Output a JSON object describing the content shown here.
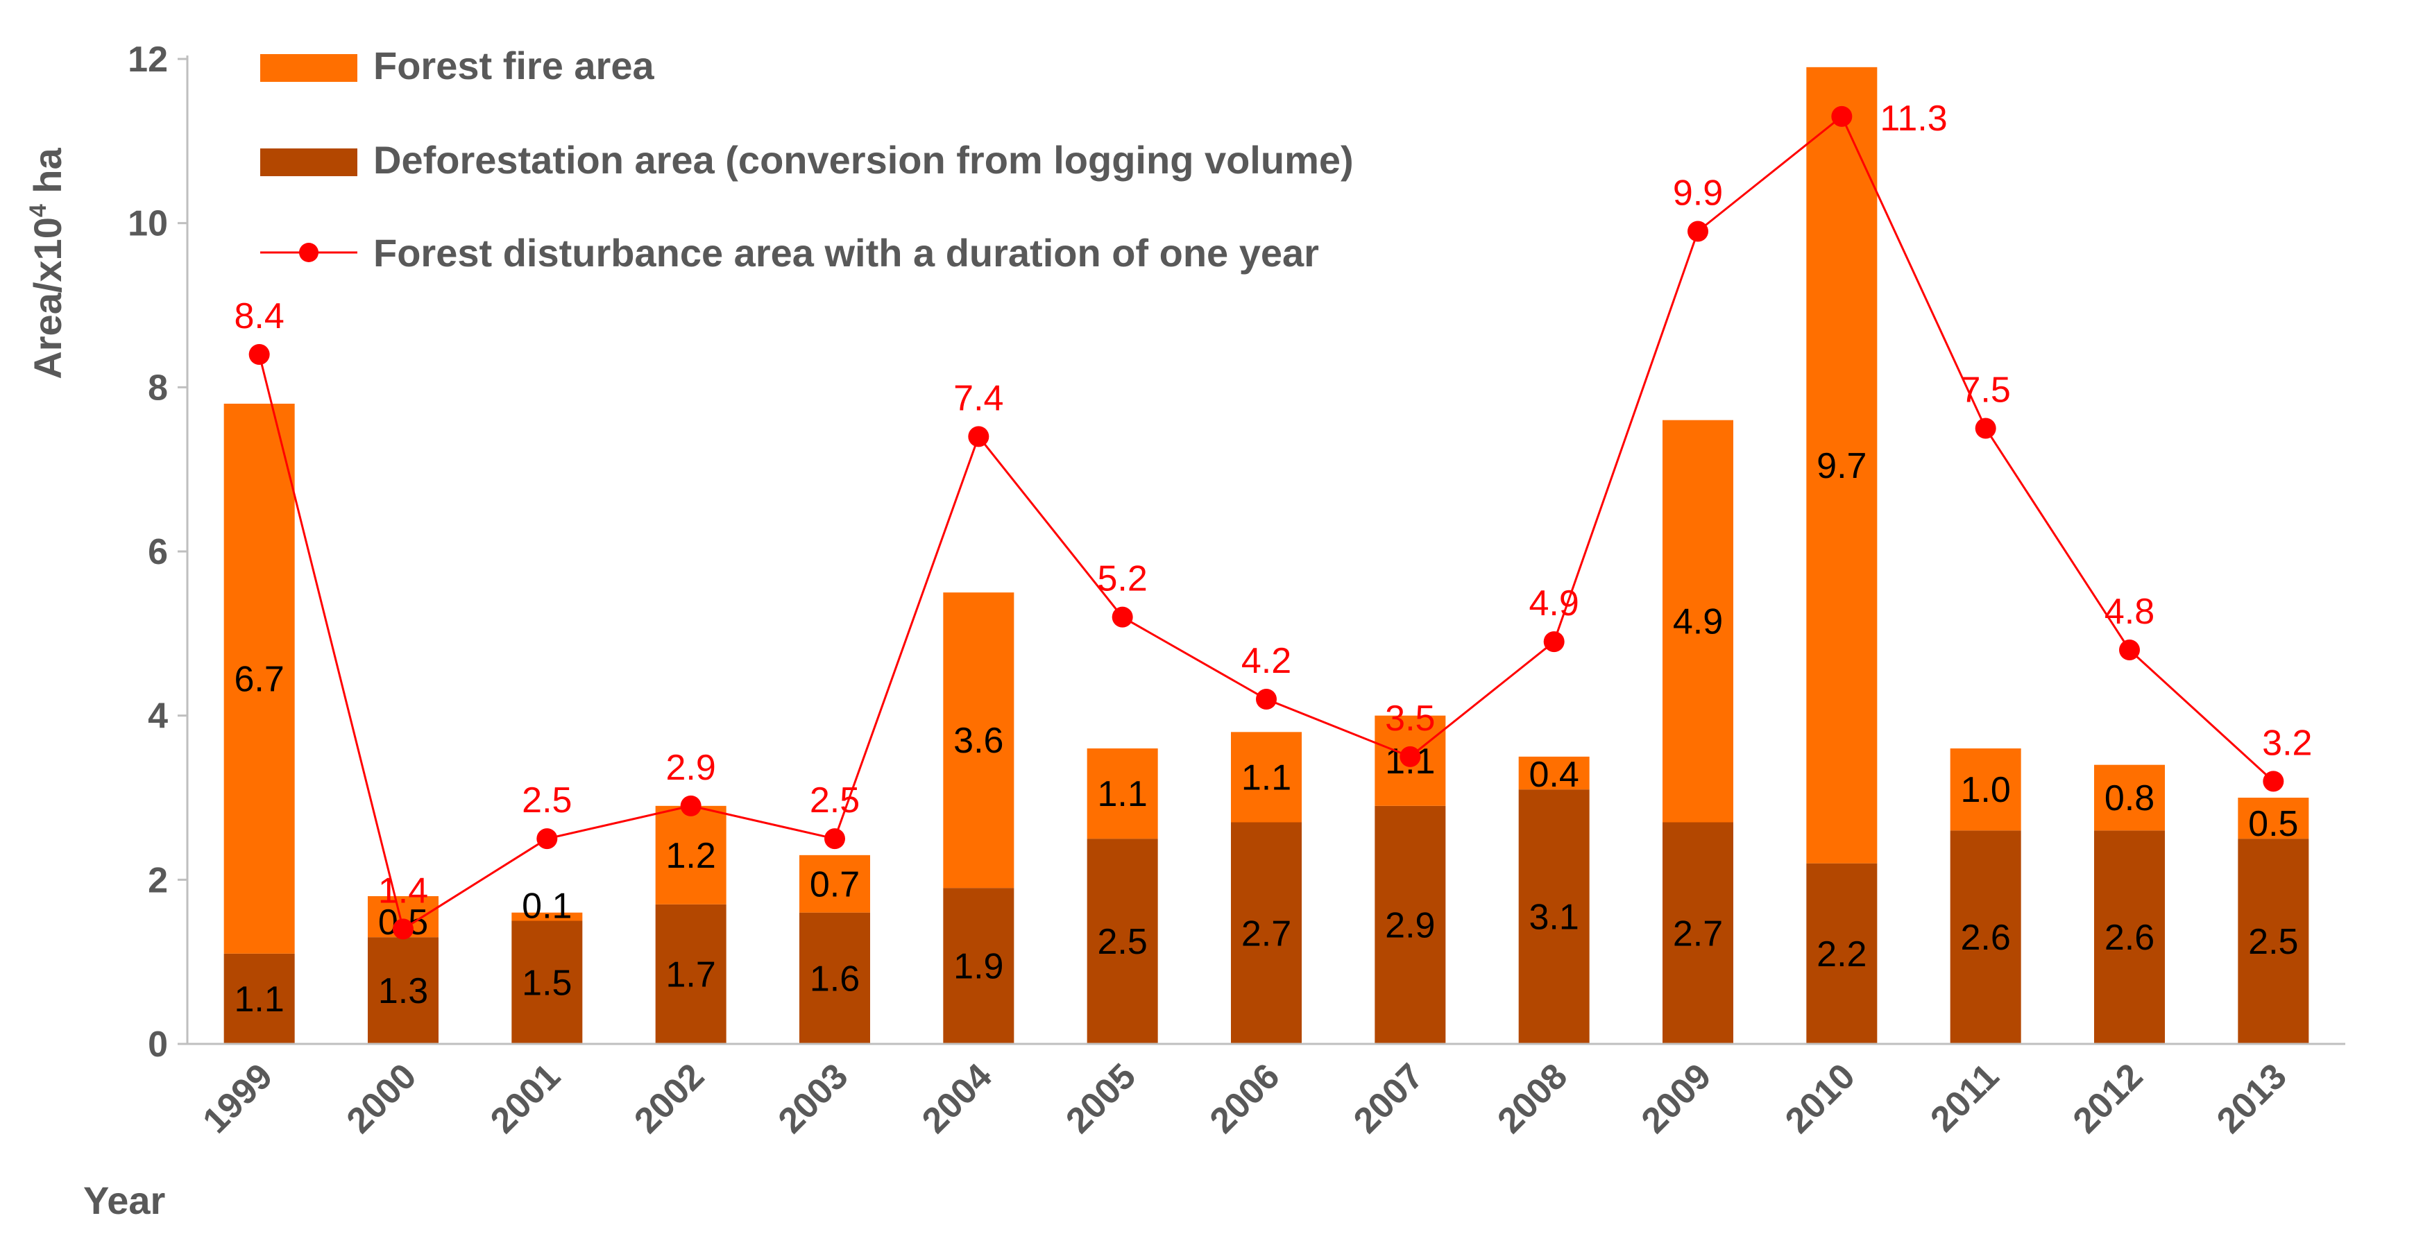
{
  "chart_data": {
    "type": "bar",
    "title": "",
    "xlabel": "Year",
    "ylabel": "Area/x10",
    "ylabel_sup": "4",
    "ylabel_suffix": " ha",
    "ylim": [
      0,
      12
    ],
    "yticks": [
      0,
      2,
      4,
      6,
      8,
      10,
      12
    ],
    "categories": [
      "1999",
      "2000",
      "2001",
      "2002",
      "2003",
      "2004",
      "2005",
      "2006",
      "2007",
      "2008",
      "2009",
      "2010",
      "2011",
      "2012",
      "2013"
    ],
    "series": [
      {
        "name": "Deforestation area (conversion from logging volume)",
        "kind": "bar-stacked-bottom",
        "color": "#b34700",
        "values": [
          1.1,
          1.3,
          1.5,
          1.7,
          1.6,
          1.9,
          2.5,
          2.7,
          2.9,
          3.1,
          2.7,
          2.2,
          2.6,
          2.6,
          2.5
        ]
      },
      {
        "name": "Forest fire area",
        "kind": "bar-stacked-top",
        "color": "#ff6f00",
        "values": [
          6.7,
          0.5,
          0.1,
          1.2,
          0.7,
          3.6,
          1.1,
          1.1,
          1.1,
          0.4,
          4.9,
          9.7,
          1.0,
          0.8,
          0.5
        ]
      },
      {
        "name": "Forest disturbance area with a duration of one year",
        "kind": "line",
        "color": "#ff0000",
        "values": [
          8.4,
          1.4,
          2.5,
          2.9,
          2.5,
          7.4,
          5.2,
          4.2,
          3.5,
          4.9,
          9.9,
          11.3,
          7.5,
          4.8,
          3.2
        ]
      }
    ],
    "legend": [
      "Forest fire area",
      "Deforestation area (conversion from logging volume)",
      "Forest disturbance area with a duration of one year"
    ],
    "legend_position": "top-left",
    "grid": false
  }
}
